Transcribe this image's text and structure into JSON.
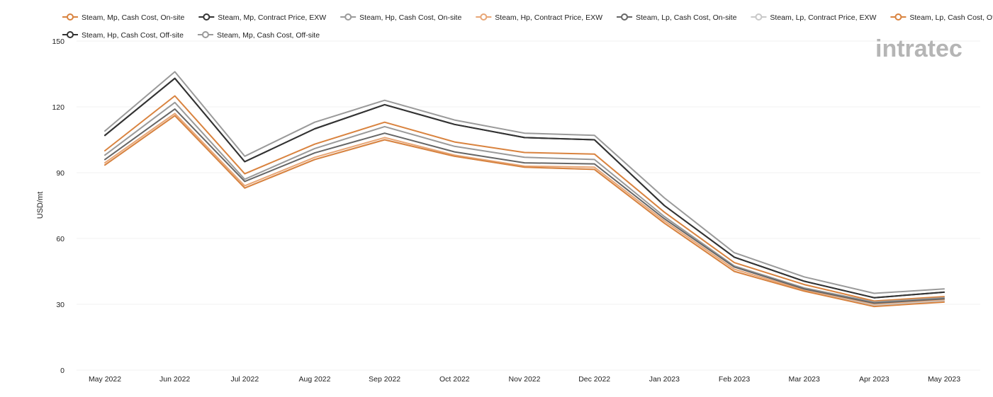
{
  "chart_data": {
    "type": "line",
    "ylabel": "USD/mt",
    "xlabel": "",
    "ylim": [
      0,
      150
    ],
    "yticks": [
      0,
      30,
      60,
      90,
      120,
      150
    ],
    "grid": true,
    "legend_position": "top",
    "categories": [
      "May 2022",
      "Jun 2022",
      "Jul 2022",
      "Aug 2022",
      "Sep 2022",
      "Oct 2022",
      "Nov 2022",
      "Dec 2022",
      "Jan 2023",
      "Feb 2023",
      "Mar 2023",
      "Apr 2023",
      "May 2023"
    ],
    "series": [
      {
        "name": "Steam, Mp, Cash Cost, On-site",
        "color": "#d9833f",
        "values": [
          100,
          125,
          89.5,
          103,
          113,
          104,
          99.2,
          98.5,
          72,
          49,
          39,
          31.5,
          33.5
        ]
      },
      {
        "name": "Steam, Mp, Contract Price, EXW",
        "color": "#333333",
        "values": [
          107,
          133,
          95,
          110,
          121,
          112,
          106,
          105,
          75,
          51.5,
          40.5,
          33,
          35.5
        ]
      },
      {
        "name": "Steam, Hp, Cash Cost, On-site",
        "color": "#9a9a9a",
        "values": [
          98,
          122,
          87,
          101,
          111,
          102,
          97,
          96,
          70,
          47.5,
          37.5,
          31,
          33
        ]
      },
      {
        "name": "Steam, Hp, Contract Price, EXW",
        "color": "#e8a676",
        "values": [
          94.5,
          117,
          84,
          97,
          106,
          98,
          93,
          92.5,
          68,
          46,
          36.5,
          30,
          32
        ]
      },
      {
        "name": "Steam, Lp, Cash Cost, On-site",
        "color": "#666666",
        "values": [
          96,
          119,
          86,
          99,
          108,
          99.5,
          94.5,
          94,
          69,
          47,
          37,
          30.5,
          32.5
        ]
      },
      {
        "name": "Steam, Lp, Contract Price, EXW",
        "color": "#c8c8c8",
        "values": [
          93.5,
          116,
          83,
          96,
          105,
          97.5,
          92.5,
          91.5,
          67,
          45,
          36,
          29.5,
          31.5
        ]
      },
      {
        "name": "Steam, Lp, Cash Cost, Off-site",
        "color": "#d9833f",
        "values": [
          93.5,
          116,
          83,
          96,
          105,
          97.5,
          92.5,
          91.5,
          67,
          45,
          36,
          29,
          31
        ]
      },
      {
        "name": "Steam, Hp, Cash Cost, Off-site",
        "color": "#333333",
        "values": [
          107,
          133,
          95,
          110,
          121,
          112,
          106,
          105,
          75,
          51.5,
          40.5,
          33,
          35.5
        ]
      },
      {
        "name": "Steam, Mp, Cash Cost, Off-site",
        "color": "#9a9a9a",
        "values": [
          109,
          136,
          97.5,
          113,
          123,
          114,
          108,
          107,
          78.5,
          53.5,
          42.5,
          35,
          37
        ]
      }
    ]
  },
  "watermark": {
    "text": "intratec"
  }
}
